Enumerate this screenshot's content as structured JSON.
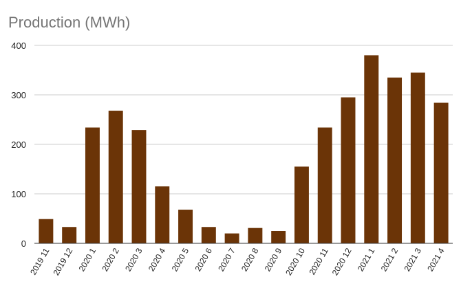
{
  "chart_data": {
    "type": "bar",
    "title": "Production (MWh)",
    "xlabel": "",
    "ylabel": "",
    "ylim": [
      0,
      400
    ],
    "yticks": [
      0,
      100,
      200,
      300,
      400
    ],
    "grid": true,
    "legend": "none",
    "categories": [
      "2019 11",
      "2019 12",
      "2020 1",
      "2020 2",
      "2020 3",
      "2020 4",
      "2020 5",
      "2020 6",
      "2020 7",
      "2020 8",
      "2020 9",
      "2020 10",
      "2020 11",
      "2020 12",
      "2021 1",
      "2021 2",
      "2021 3",
      "2021 4"
    ],
    "values": [
      49,
      33,
      234,
      268,
      229,
      115,
      68,
      33,
      20,
      31,
      25,
      155,
      234,
      295,
      380,
      335,
      345,
      284
    ],
    "colors": {
      "bar": "#6b3407",
      "grid": "#cccccc",
      "axis": "#333333",
      "title": "#757575",
      "text": "#222222"
    }
  }
}
